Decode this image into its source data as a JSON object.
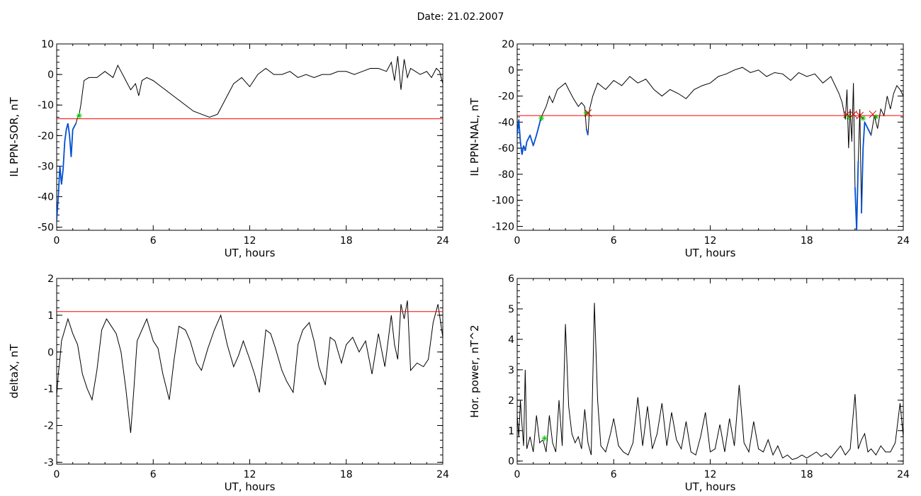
{
  "page": {
    "title": "Date:  21.02.2007"
  },
  "chart_data": [
    {
      "type": "line",
      "id": "sor",
      "xlabel": "UT, hours",
      "ylabel": "IL PPN-SOR, nT",
      "xlim": [
        0,
        24
      ],
      "ylim": [
        -51,
        10
      ],
      "xticks": [
        0,
        6,
        12,
        18,
        24
      ],
      "yticks": [
        10,
        0,
        -10,
        -20,
        -30,
        -40,
        -50
      ],
      "threshold": -14.5,
      "grid": false,
      "colors": {
        "line": "#000000",
        "below": "#0050d0",
        "threshold": "#ff0000",
        "marker": "#00cc00"
      },
      "markers": [
        [
          1.4,
          -13.5
        ]
      ],
      "series": [
        {
          "x": [
            0.0,
            0.1,
            0.2,
            0.3,
            0.4,
            0.5,
            0.6,
            0.7,
            0.8,
            0.9,
            1.0,
            1.1,
            1.2,
            1.3,
            1.4,
            1.5,
            1.7,
            2.0,
            2.5,
            3.0,
            3.5,
            3.8,
            4.0,
            4.3,
            4.6,
            4.9,
            5.1,
            5.3,
            5.6,
            6.0,
            6.5,
            7.0,
            7.5,
            8.0,
            8.5,
            9.0,
            9.5,
            10.0,
            10.3,
            10.6,
            11.0,
            11.5,
            12.0,
            12.5,
            13.0,
            13.5,
            14.0,
            14.5,
            15.0,
            15.5,
            16.0,
            16.5,
            17.0,
            17.5,
            18.0,
            18.5,
            19.0,
            19.5,
            20.0,
            20.5,
            20.8,
            21.0,
            21.2,
            21.4,
            21.6,
            21.8,
            22.0,
            22.3,
            22.6,
            23.0,
            23.3,
            23.6,
            23.8,
            24.0
          ],
          "y": [
            -48,
            -40,
            -30,
            -36,
            -31,
            -22,
            -18,
            -16,
            -20,
            -27,
            -18,
            -17,
            -16,
            -14,
            -13,
            -10,
            -2,
            -1,
            -1,
            1,
            -1,
            3,
            1,
            -2,
            -5,
            -3,
            -7,
            -2,
            -1,
            -2,
            -4,
            -6,
            -8,
            -10,
            -12,
            -13,
            -14,
            -13,
            -10,
            -7,
            -3,
            -1,
            -4,
            0,
            2,
            0,
            0,
            1,
            -1,
            0,
            -1,
            0,
            0,
            1,
            1,
            0,
            1,
            2,
            2,
            1,
            4,
            -2,
            6,
            -5,
            5,
            -1,
            2,
            1,
            0,
            1,
            -1,
            2,
            1,
            -3
          ]
        }
      ]
    },
    {
      "type": "line",
      "id": "nal",
      "xlabel": "UT, hours",
      "ylabel": "IL PPN-NAL, nT",
      "xlim": [
        0,
        24
      ],
      "ylim": [
        -123,
        20
      ],
      "xticks": [
        0,
        6,
        12,
        18,
        24
      ],
      "yticks": [
        20,
        0,
        -20,
        -40,
        -60,
        -80,
        -100,
        -120
      ],
      "threshold": -35,
      "grid": false,
      "colors": {
        "line": "#000000",
        "below": "#0050d0",
        "threshold": "#ff0000",
        "marker": "#00cc00",
        "cross": "#d00000"
      },
      "markers": [
        [
          1.5,
          -37
        ],
        [
          4.3,
          -33
        ],
        [
          20.6,
          -36
        ],
        [
          21.5,
          -37
        ],
        [
          22.3,
          -36
        ]
      ],
      "crosses": [
        [
          4.4,
          -33
        ],
        [
          20.5,
          -34
        ],
        [
          20.9,
          -34
        ],
        [
          21.3,
          -35
        ],
        [
          22.1,
          -34
        ]
      ],
      "series": [
        {
          "x": [
            0.0,
            0.1,
            0.2,
            0.3,
            0.4,
            0.5,
            0.6,
            0.8,
            1.0,
            1.2,
            1.5,
            1.8,
            2.0,
            2.2,
            2.5,
            3.0,
            3.2,
            3.5,
            3.8,
            4.0,
            4.2,
            4.3,
            4.4,
            4.5,
            4.7,
            5.0,
            5.5,
            6.0,
            6.5,
            7.0,
            7.5,
            8.0,
            8.5,
            9.0,
            9.5,
            10.0,
            10.5,
            11.0,
            11.5,
            12.0,
            12.5,
            13.0,
            13.5,
            14.0,
            14.5,
            15.0,
            15.5,
            16.0,
            16.5,
            17.0,
            17.5,
            18.0,
            18.5,
            19.0,
            19.5,
            20.0,
            20.2,
            20.4,
            20.5,
            20.6,
            20.7,
            20.8,
            20.9,
            21.0,
            21.1,
            21.2,
            21.3,
            21.4,
            21.5,
            21.6,
            21.8,
            22.0,
            22.2,
            22.4,
            22.6,
            22.8,
            23.0,
            23.2,
            23.4,
            23.6,
            23.8,
            24.0
          ],
          "y": [
            -50,
            -38,
            -55,
            -65,
            -58,
            -62,
            -55,
            -50,
            -58,
            -50,
            -36,
            -28,
            -20,
            -25,
            -15,
            -10,
            -15,
            -22,
            -28,
            -25,
            -28,
            -45,
            -50,
            -30,
            -20,
            -10,
            -15,
            -8,
            -12,
            -5,
            -10,
            -7,
            -15,
            -20,
            -15,
            -18,
            -22,
            -15,
            -12,
            -10,
            -5,
            -3,
            0,
            2,
            -2,
            0,
            -5,
            -2,
            -3,
            -8,
            -2,
            -5,
            -3,
            -10,
            -5,
            -18,
            -25,
            -38,
            -15,
            -60,
            -30,
            -55,
            -10,
            -90,
            -123,
            -70,
            -30,
            -110,
            -60,
            -40,
            -45,
            -50,
            -35,
            -45,
            -30,
            -35,
            -20,
            -30,
            -18,
            -12,
            -15,
            -20
          ]
        }
      ]
    },
    {
      "type": "line",
      "id": "deltax",
      "xlabel": "UT, hours",
      "ylabel": "deltaX, nT",
      "xlim": [
        0,
        24
      ],
      "ylim": [
        -3.05,
        2
      ],
      "xticks": [
        0,
        6,
        12,
        18,
        24
      ],
      "yticks": [
        2,
        1,
        0,
        -1,
        -2,
        -3
      ],
      "threshold": 1.1,
      "grid": false,
      "colors": {
        "line": "#000000",
        "threshold": "#ff0000"
      },
      "series": [
        {
          "x": [
            0.0,
            0.1,
            0.2,
            0.3,
            0.5,
            0.7,
            1.0,
            1.3,
            1.6,
            1.9,
            2.2,
            2.5,
            2.8,
            3.1,
            3.4,
            3.7,
            4.0,
            4.3,
            4.6,
            4.8,
            5.0,
            5.3,
            5.6,
            6.0,
            6.3,
            6.6,
            7.0,
            7.3,
            7.6,
            8.0,
            8.3,
            8.7,
            9.0,
            9.4,
            9.8,
            10.2,
            10.6,
            11.0,
            11.3,
            11.6,
            12.0,
            12.3,
            12.6,
            13.0,
            13.3,
            13.6,
            14.0,
            14.3,
            14.7,
            15.0,
            15.3,
            15.7,
            16.0,
            16.3,
            16.7,
            17.0,
            17.3,
            17.7,
            18.0,
            18.4,
            18.8,
            19.2,
            19.6,
            20.0,
            20.4,
            20.8,
            21.0,
            21.2,
            21.4,
            21.6,
            21.8,
            22.0,
            22.4,
            22.8,
            23.1,
            23.4,
            23.7,
            24.0
          ],
          "y": [
            -1.2,
            -0.6,
            -0.2,
            0.3,
            0.6,
            0.9,
            0.5,
            0.2,
            -0.6,
            -1.0,
            -1.3,
            -0.5,
            0.6,
            0.9,
            0.7,
            0.5,
            0.0,
            -1.0,
            -2.2,
            -1.0,
            0.3,
            0.6,
            0.9,
            0.3,
            0.1,
            -0.6,
            -1.3,
            -0.2,
            0.7,
            0.6,
            0.3,
            -0.3,
            -0.5,
            0.1,
            0.6,
            1.0,
            0.2,
            -0.4,
            -0.1,
            0.3,
            -0.2,
            -0.6,
            -1.1,
            0.6,
            0.5,
            0.1,
            -0.5,
            -0.8,
            -1.1,
            0.2,
            0.6,
            0.8,
            0.3,
            -0.4,
            -0.9,
            0.4,
            0.3,
            -0.3,
            0.2,
            0.4,
            0.0,
            0.3,
            -0.6,
            0.5,
            -0.4,
            1.0,
            0.2,
            -0.2,
            1.3,
            0.9,
            1.4,
            -0.5,
            -0.3,
            -0.4,
            -0.2,
            0.8,
            1.3,
            0.4
          ]
        }
      ]
    },
    {
      "type": "line",
      "id": "power",
      "xlabel": "UT, hours",
      "ylabel": "Hor. power, nT^2",
      "xlim": [
        0,
        24
      ],
      "ylim": [
        -0.1,
        6
      ],
      "xticks": [
        0,
        6,
        12,
        18,
        24
      ],
      "yticks": [
        6,
        5,
        4,
        3,
        2,
        1,
        0
      ],
      "grid": false,
      "colors": {
        "line": "#000000",
        "marker": "#00cc00"
      },
      "markers": [
        [
          1.7,
          0.75
        ]
      ],
      "series": [
        {
          "x": [
            0.0,
            0.1,
            0.2,
            0.3,
            0.4,
            0.5,
            0.6,
            0.8,
            1.0,
            1.2,
            1.4,
            1.6,
            1.8,
            2.0,
            2.2,
            2.4,
            2.6,
            2.8,
            3.0,
            3.2,
            3.4,
            3.6,
            3.8,
            4.0,
            4.2,
            4.4,
            4.6,
            4.8,
            5.0,
            5.2,
            5.5,
            5.8,
            6.0,
            6.3,
            6.6,
            6.9,
            7.2,
            7.5,
            7.8,
            8.1,
            8.4,
            8.7,
            9.0,
            9.3,
            9.6,
            9.9,
            10.2,
            10.5,
            10.8,
            11.1,
            11.4,
            11.7,
            12.0,
            12.3,
            12.6,
            12.9,
            13.2,
            13.5,
            13.8,
            14.1,
            14.4,
            14.7,
            15.0,
            15.3,
            15.6,
            15.9,
            16.2,
            16.5,
            16.8,
            17.1,
            17.4,
            17.7,
            18.0,
            18.3,
            18.6,
            18.9,
            19.2,
            19.5,
            19.8,
            20.1,
            20.4,
            20.7,
            21.0,
            21.2,
            21.4,
            21.6,
            21.8,
            22.0,
            22.3,
            22.6,
            22.9,
            23.2,
            23.5,
            23.8,
            24.0
          ],
          "y": [
            1.5,
            0.8,
            2.0,
            1.2,
            0.5,
            3.0,
            0.4,
            0.8,
            0.3,
            1.5,
            0.6,
            0.7,
            0.3,
            1.5,
            0.6,
            0.3,
            2.0,
            0.5,
            4.5,
            1.8,
            0.9,
            0.6,
            0.8,
            0.4,
            1.7,
            0.6,
            0.2,
            5.2,
            2.0,
            0.5,
            0.3,
            0.9,
            1.4,
            0.5,
            0.3,
            0.2,
            0.6,
            2.1,
            0.5,
            1.8,
            0.4,
            0.9,
            1.9,
            0.5,
            1.6,
            0.7,
            0.4,
            1.3,
            0.3,
            0.2,
            0.8,
            1.6,
            0.3,
            0.4,
            1.2,
            0.3,
            1.4,
            0.5,
            2.5,
            0.6,
            0.3,
            1.3,
            0.4,
            0.3,
            0.7,
            0.2,
            0.5,
            0.1,
            0.2,
            0.05,
            0.1,
            0.2,
            0.1,
            0.2,
            0.3,
            0.15,
            0.25,
            0.1,
            0.3,
            0.5,
            0.2,
            0.4,
            2.2,
            0.4,
            0.7,
            0.9,
            0.3,
            0.4,
            0.2,
            0.5,
            0.3,
            0.3,
            0.6,
            1.9,
            0.8
          ]
        }
      ]
    }
  ]
}
